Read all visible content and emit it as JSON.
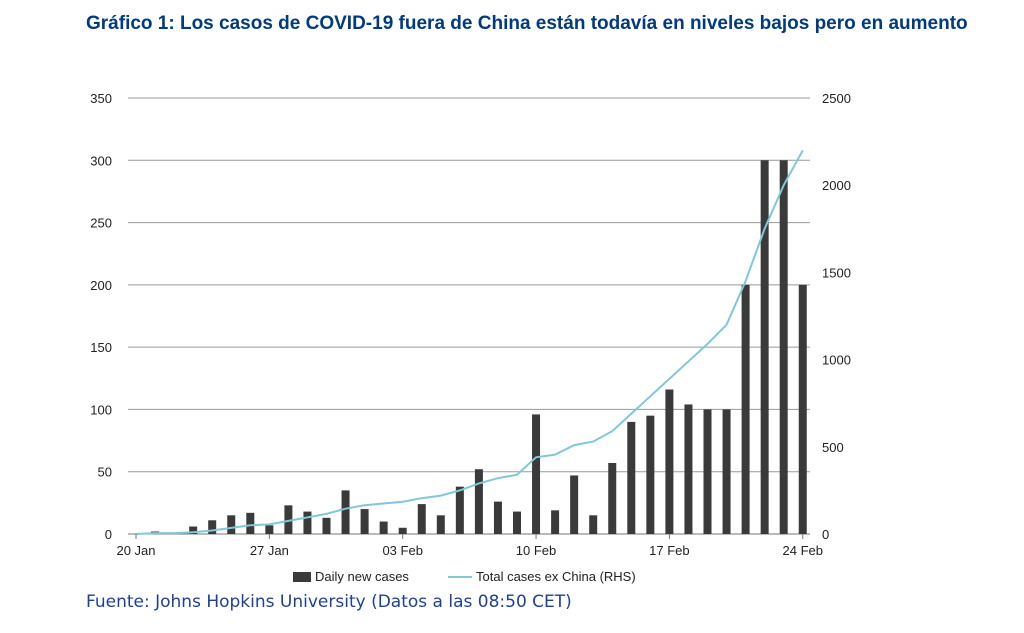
{
  "title": "Gráfico 1: Los casos de COVID-19 fuera de China están todavía en niveles bajos pero en aumento",
  "source": "Fuente: Johns Hopkins University (Datos a las 08:50 CET)",
  "chart_data": {
    "type": "bar+line",
    "x": [
      "20 Jan",
      "21 Jan",
      "22 Jan",
      "23 Jan",
      "24 Jan",
      "25 Jan",
      "26 Jan",
      "27 Jan",
      "28 Jan",
      "29 Jan",
      "30 Jan",
      "31 Jan",
      "01 Feb",
      "02 Feb",
      "03 Feb",
      "04 Feb",
      "05 Feb",
      "06 Feb",
      "07 Feb",
      "08 Feb",
      "09 Feb",
      "10 Feb",
      "11 Feb",
      "12 Feb",
      "13 Feb",
      "14 Feb",
      "15 Feb",
      "16 Feb",
      "17 Feb",
      "18 Feb",
      "19 Feb",
      "20 Feb",
      "21 Feb",
      "22 Feb",
      "23 Feb",
      "24 Feb"
    ],
    "x_tick_labels": [
      "20 Jan",
      "27 Jan",
      "03 Feb",
      "10 Feb",
      "17 Feb",
      "24 Feb"
    ],
    "series": [
      {
        "name": "Daily new cases",
        "type": "bar",
        "axis": "left",
        "color": "#3a3a3a",
        "values": [
          0,
          2,
          0,
          6,
          11,
          15,
          17,
          7,
          23,
          18,
          13,
          35,
          20,
          10,
          5,
          24,
          15,
          38,
          52,
          26,
          18,
          96,
          19,
          47,
          15,
          57,
          90,
          95,
          116,
          104,
          100,
          100,
          200,
          300,
          300,
          200
        ]
      },
      {
        "name": "Total cases ex China (RHS)",
        "type": "line",
        "axis": "right",
        "color": "#7ec8d8",
        "values": [
          0,
          5,
          5,
          10,
          20,
          35,
          50,
          55,
          75,
          95,
          115,
          145,
          165,
          175,
          185,
          205,
          220,
          250,
          290,
          320,
          340,
          440,
          455,
          510,
          530,
          590,
          690,
          790,
          890,
          990,
          1090,
          1200,
          1450,
          1750,
          2000,
          2200
        ]
      }
    ],
    "ylim_left": [
      0,
      350
    ],
    "yticks_left": [
      0,
      50,
      100,
      150,
      200,
      250,
      300,
      350
    ],
    "ylim_right": [
      0,
      2500
    ],
    "yticks_right": [
      0,
      500,
      1000,
      1500,
      2000,
      2500
    ],
    "grid": true,
    "legend_position": "bottom"
  }
}
